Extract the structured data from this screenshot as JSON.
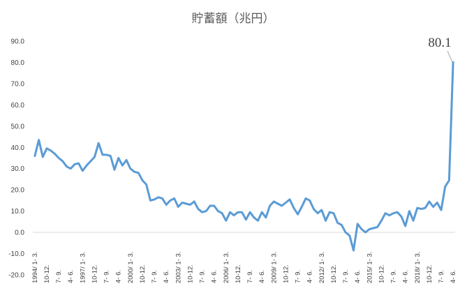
{
  "chart_data": {
    "type": "line",
    "title": "貯蓄額（兆円）",
    "ylim": [
      -20,
      90
    ],
    "yticks": [
      "-20.0",
      "-10.0",
      "0.0",
      "10.0",
      "20.0",
      "30.0",
      "40.0",
      "50.0",
      "60.0",
      "70.0",
      "80.0",
      "90.0"
    ],
    "grid": false,
    "x_tick_labels": [
      "1994/ 1- 3.",
      "10-12.",
      "7- 9.",
      "4- 6.",
      "1997/ 1- 3.",
      "10-12.",
      "7- 9.",
      "4- 6.",
      "2000/ 1- 3.",
      "10-12.",
      "7- 9.",
      "4- 6.",
      "2003/ 1- 3.",
      "10-12.",
      "7- 9.",
      "4- 6.",
      "2006/ 1- 3.",
      "10-12.",
      "7- 9.",
      "4- 6.",
      "2009/ 1- 3.",
      "10-12.",
      "7- 9.",
      "4- 6.",
      "2012/ 1- 3.",
      "10-12.",
      "7- 9.",
      "4- 6.",
      "2015/ 1- 3.",
      "10-12.",
      "7- 9.",
      "4- 6.",
      "2018/ 1- 3.",
      "10-12.",
      "7- 9.",
      "4- 6."
    ],
    "series": [
      {
        "color": "#5b9bd5",
        "values": [
          36.0,
          43.5,
          35.5,
          39.5,
          38.5,
          37.0,
          35.0,
          33.5,
          31.0,
          30.0,
          32.0,
          32.5,
          29.0,
          31.5,
          33.5,
          35.5,
          42.0,
          36.5,
          36.5,
          36.0,
          29.5,
          35.0,
          31.5,
          34.0,
          30.0,
          28.5,
          28.0,
          24.5,
          22.5,
          15.0,
          15.5,
          16.5,
          16.0,
          13.0,
          15.0,
          16.0,
          12.0,
          14.0,
          13.5,
          13.0,
          14.5,
          11.0,
          9.5,
          10.0,
          12.5,
          12.5,
          10.0,
          9.0,
          5.5,
          9.5,
          8.0,
          9.5,
          9.5,
          6.0,
          9.5,
          7.0,
          5.5,
          9.5,
          7.0,
          12.5,
          14.5,
          13.5,
          12.5,
          14.0,
          15.5,
          11.5,
          8.5,
          12.0,
          16.0,
          15.0,
          11.0,
          9.0,
          10.5,
          5.5,
          9.5,
          9.0,
          4.5,
          3.5,
          0.0,
          -1.5,
          -8.5,
          4.0,
          1.5,
          0.0,
          1.5,
          2.0,
          2.5,
          5.5,
          9.0,
          8.0,
          9.0,
          9.5,
          7.5,
          3.0,
          10.0,
          5.5,
          11.5,
          11.0,
          11.5,
          14.5,
          12.0,
          14.0,
          10.5,
          21.5,
          24.5,
          80.1
        ]
      }
    ],
    "annotation": "80.1"
  }
}
